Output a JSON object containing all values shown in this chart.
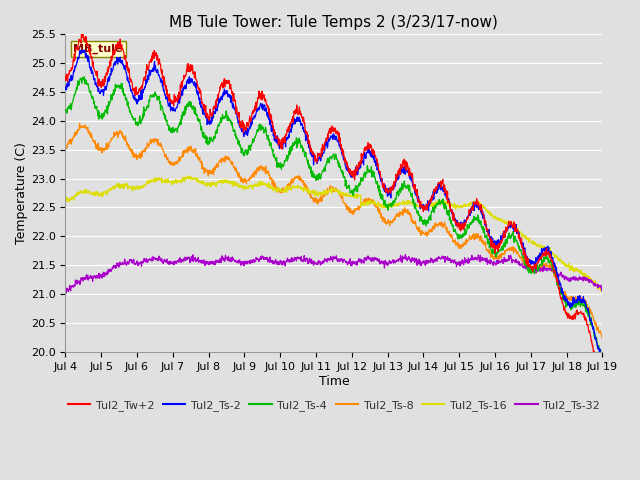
{
  "title": "MB Tule Tower: Tule Temps 2 (3/23/17-now)",
  "xlabel": "Time",
  "ylabel": "Temperature (C)",
  "ylim": [
    20.0,
    25.5
  ],
  "yticks": [
    20.0,
    20.5,
    21.0,
    21.5,
    22.0,
    22.5,
    23.0,
    23.5,
    24.0,
    24.5,
    25.0,
    25.5
  ],
  "background_color": "#e0e0e0",
  "plot_bg_color": "#e0e0e0",
  "grid_color": "#ffffff",
  "series_colors": {
    "Tul2_Tw+2": "#ff0000",
    "Tul2_Ts-2": "#0000ff",
    "Tul2_Ts-4": "#00bb00",
    "Tul2_Ts-8": "#ff8800",
    "Tul2_Ts-16": "#dddd00",
    "Tul2_Ts-32": "#aa00cc"
  },
  "xtick_labels": [
    "Jul 4",
    "Jul 5",
    "Jul 6",
    "Jul 7",
    "Jul 8",
    "Jul 9",
    "Jul 10",
    "Jul 11",
    "Jul 12",
    "Jul 13",
    "Jul 14",
    "Jul 15",
    "Jul 16",
    "Jul 17",
    "Jul 18",
    "Jul 19"
  ],
  "station_label": "MB_tule",
  "station_label_color": "#880000",
  "station_box_color": "#ffffcc",
  "station_box_edge": "#888800",
  "title_fontsize": 11,
  "axis_fontsize": 9,
  "tick_fontsize": 8,
  "legend_fontsize": 8
}
